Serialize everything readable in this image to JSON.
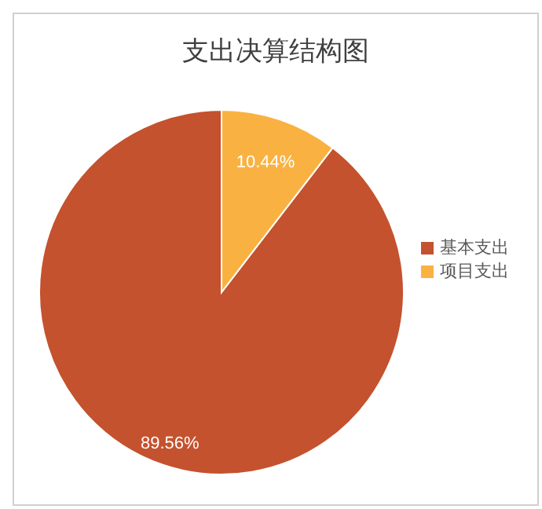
{
  "chart_data": {
    "type": "pie",
    "title": "支出决算结构图",
    "categories": [
      "基本支出",
      "项目支出"
    ],
    "values": [
      89.56,
      10.44
    ],
    "colors": [
      "#c4522e",
      "#f9b241"
    ],
    "value_labels": [
      "89.56%",
      "10.44%"
    ],
    "legend": "right"
  }
}
